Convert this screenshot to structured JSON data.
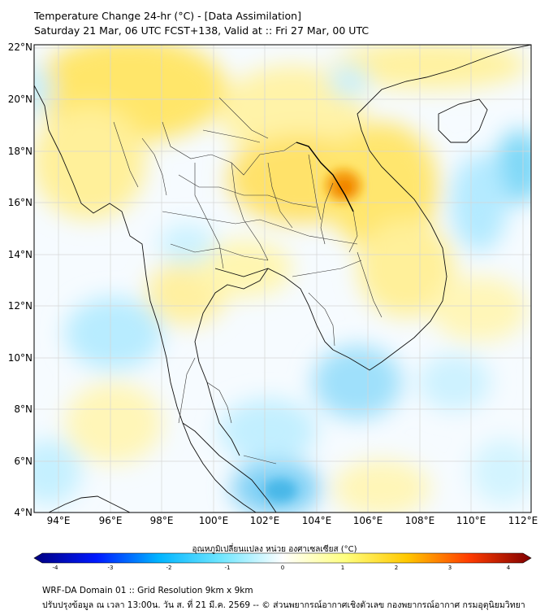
{
  "header": {
    "title": "Temperature Change 24-hr (°C) - [Data Assimilation]",
    "subtitle": "Saturday 21 Mar, 06 UTC FCST+138, Valid at :: Fri 27 Mar, 00 UTC"
  },
  "axes": {
    "lat_labels": [
      "22°N",
      "20°N",
      "18°N",
      "16°N",
      "14°N",
      "12°N",
      "10°N",
      "8°N",
      "6°N",
      "4°N"
    ],
    "lon_labels": [
      "94°E",
      "96°E",
      "98°E",
      "100°E",
      "102°E",
      "104°E",
      "106°E",
      "108°E",
      "110°E",
      "112°E"
    ]
  },
  "colorbar": {
    "title": "อุณหภูมิเปลี่ยนแปลง หน่วย องศาเซลเซียส (°C)",
    "ticks": [
      "-4",
      "-3",
      "-2",
      "-1",
      "0",
      "1",
      "2",
      "3",
      "4"
    ],
    "min": -4,
    "max": 4,
    "colors": [
      "#00007f",
      "#0019ff",
      "#00b4ff",
      "#6ee6ff",
      "#ffffff",
      "#ffff80",
      "#ffc800",
      "#ff3c00",
      "#7f0000"
    ]
  },
  "footer": {
    "line1": "WRF-DA Domain 01 :: Grid Resolution 9km x 9km",
    "line2": "ปรับปรุงข้อมูล ณ เวลา 13:00น. วัน ส. ที่ 21 มี.ค. 2569 -- © ส่วนพยากรณ์อากาศเชิงตัวเลข กองพยากรณ์อากาศ กรมอุตุนิยมวิทยา"
  },
  "legend_colors": {
    "land_warm": "#fff3a0",
    "hot": "#ffc400",
    "hotspot": "#f07a00",
    "cool": "#b8ecff",
    "cold": "#6fd0f5",
    "coldest": "#45bde8"
  }
}
